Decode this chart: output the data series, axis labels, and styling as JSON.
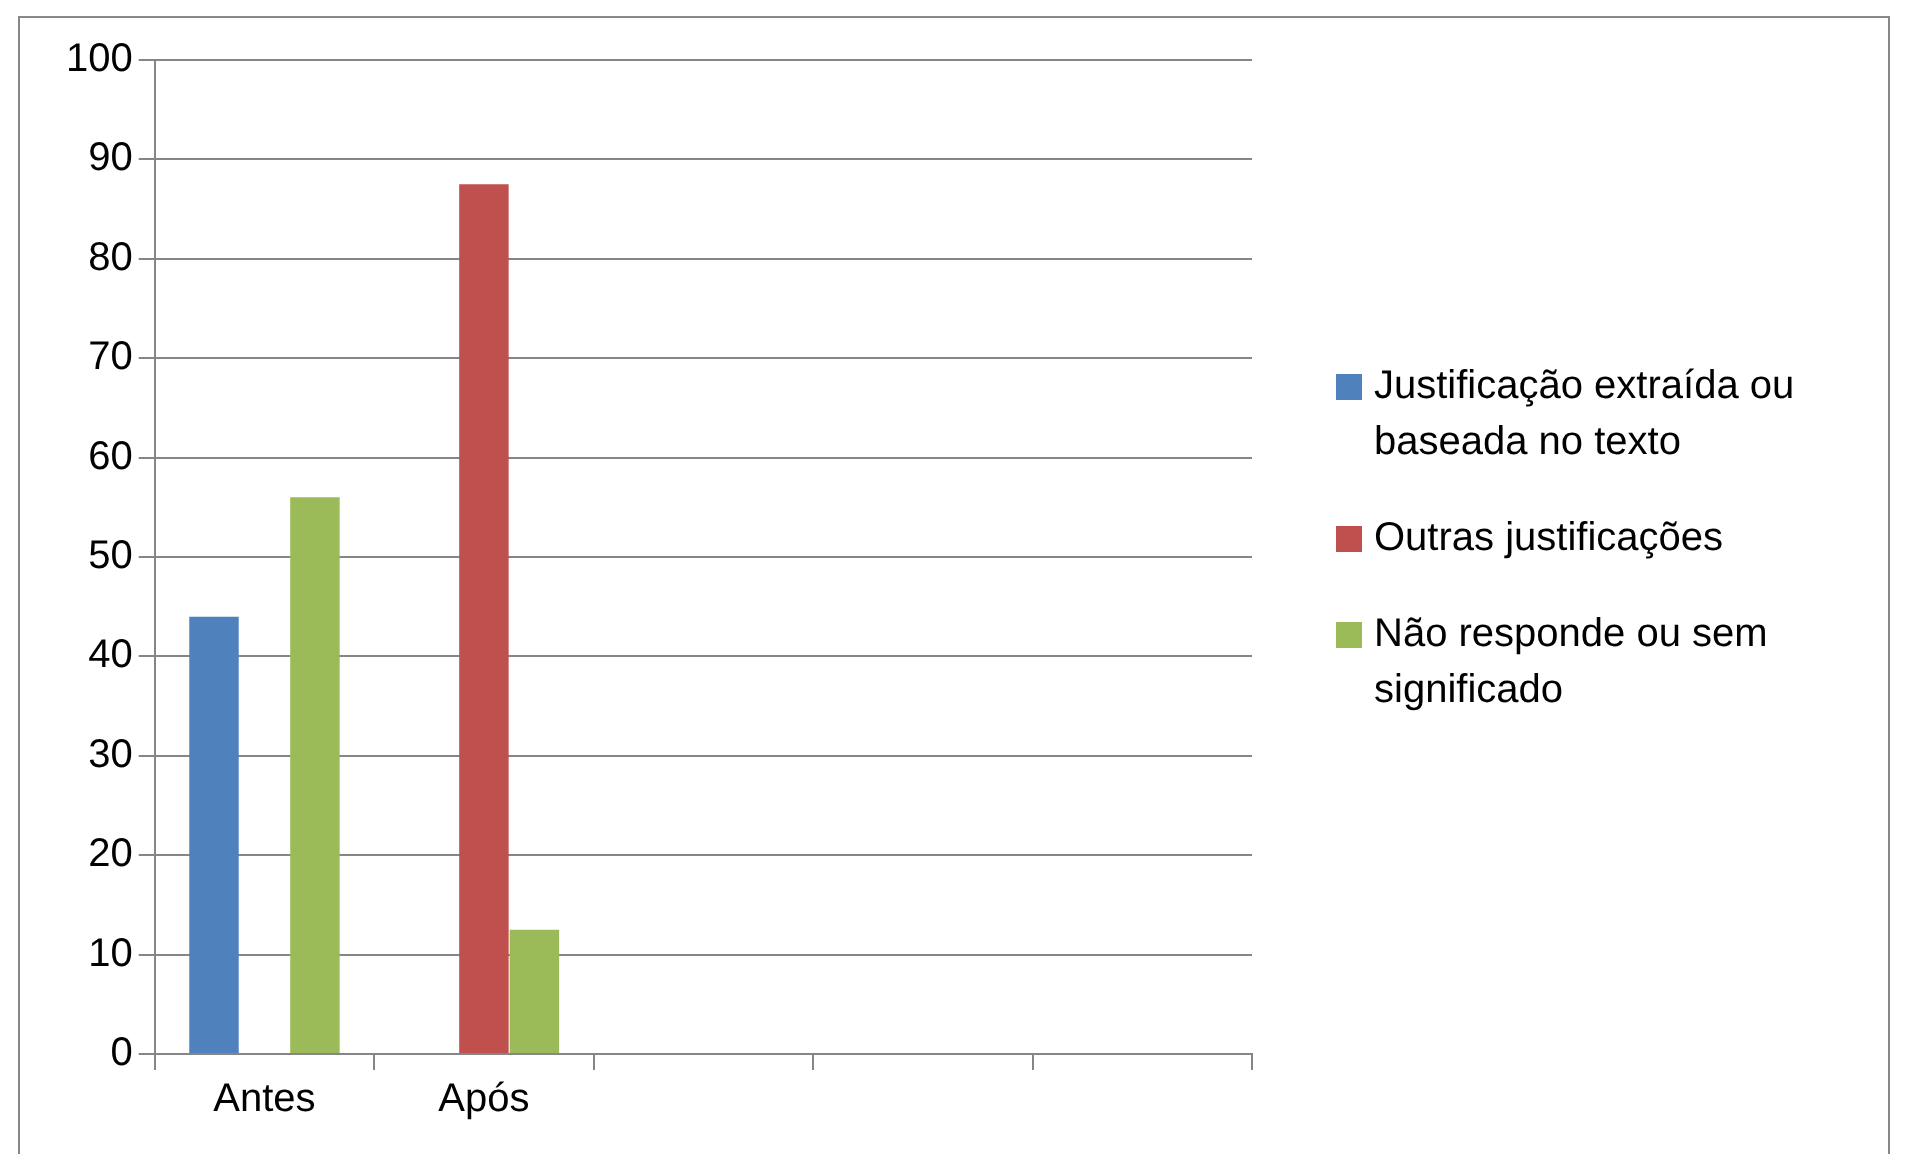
{
  "chart_data": {
    "type": "bar",
    "categories": [
      "Antes",
      "Após",
      null,
      null,
      null
    ],
    "series": [
      {
        "name": "Justificação extraída ou baseada no texto",
        "color": "#4f81bd",
        "values": [
          44,
          0,
          null,
          null,
          null
        ]
      },
      {
        "name": "Outras justificações",
        "color": "#c0504d",
        "values": [
          0,
          87.5,
          null,
          null,
          null
        ]
      },
      {
        "name": "Não responde ou sem significado",
        "color": "#9bbb59",
        "values": [
          56,
          12.5,
          null,
          null,
          null
        ]
      }
    ],
    "ylim": [
      0,
      100
    ],
    "yticks": [
      0,
      10,
      20,
      30,
      40,
      50,
      60,
      70,
      80,
      90,
      100
    ],
    "grid": "y",
    "legend": "right"
  }
}
